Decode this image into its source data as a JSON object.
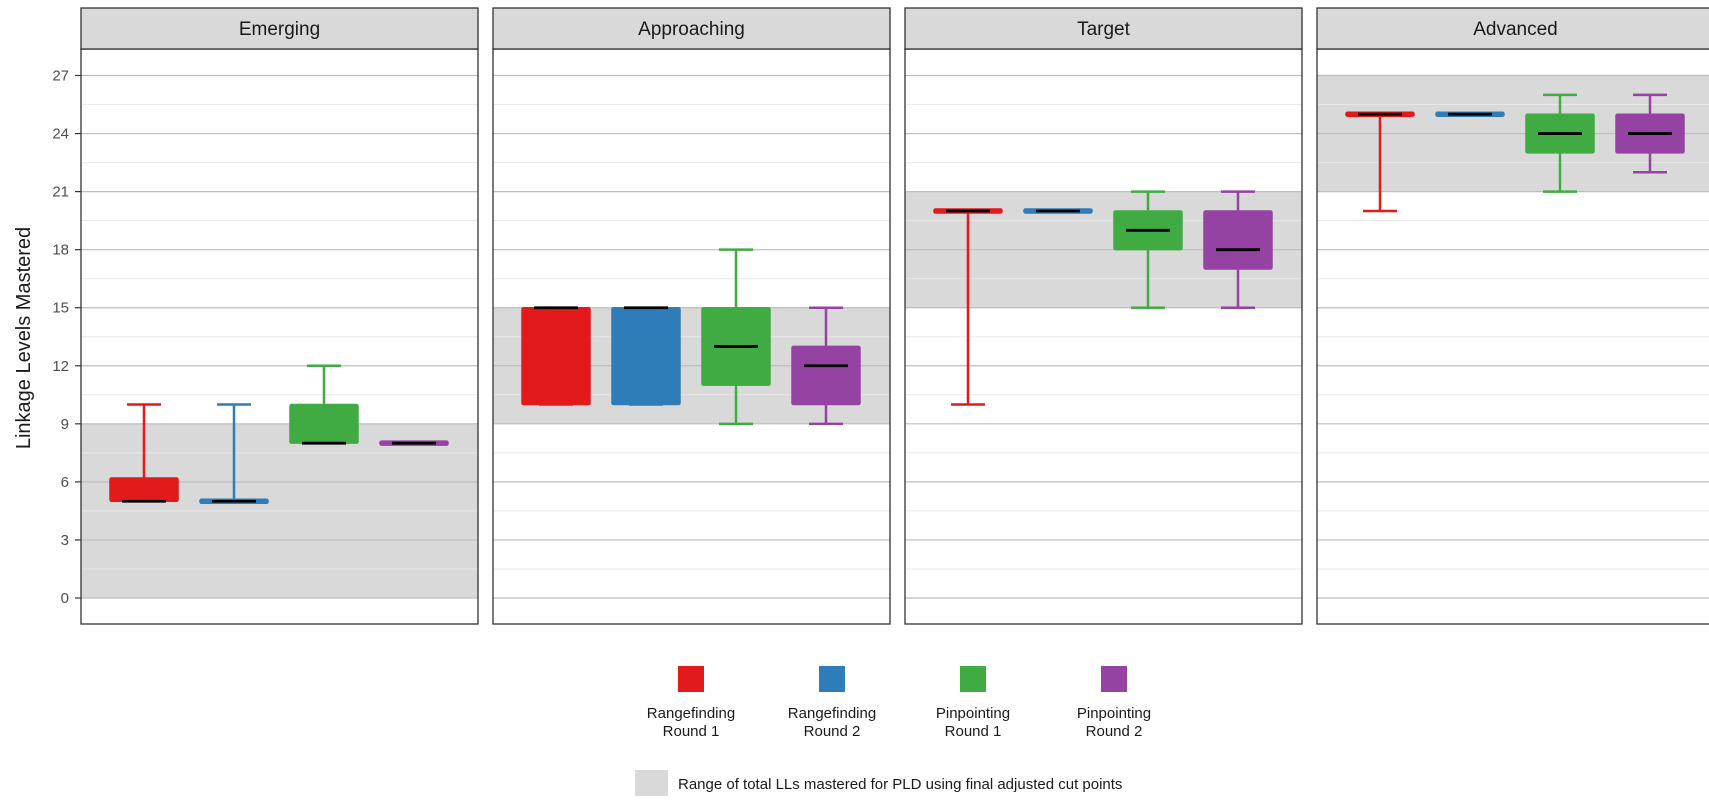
{
  "chart_data": {
    "type": "box",
    "ylabel": "Linkage Levels Mastered",
    "xlabel": "",
    "title": "",
    "ylim": [
      -1.3,
      30.5
    ],
    "y_ticks": [
      "0",
      "3",
      "6",
      "9",
      "12",
      "15",
      "18",
      "21",
      "24",
      "27"
    ],
    "y_tick_values": [
      0,
      3,
      6,
      9,
      12,
      15,
      18,
      21,
      24,
      27
    ],
    "grid": true,
    "legend_placement": "bottom",
    "series": [
      {
        "name": "Rangefinding\nRound 1",
        "color": "#E31A1C"
      },
      {
        "name": "Rangefinding\nRound 2",
        "color": "#2E7CB8"
      },
      {
        "name": "Pinpointing\nRound 1",
        "color": "#41AB43"
      },
      {
        "name": "Pinpointing\nRound 2",
        "color": "#9443A3"
      }
    ],
    "band_legend": {
      "label": "Range of total LLs mastered for PLD using final adjusted cut points",
      "color": "#D9D9D9"
    },
    "panels": [
      {
        "name": "Emerging",
        "band": [
          0,
          9
        ],
        "boxes": [
          {
            "series": 0,
            "min": 5,
            "q1": 5,
            "median": 5,
            "q3": 6.2,
            "max": 10
          },
          {
            "series": 1,
            "min": 5,
            "q1": 5,
            "median": 5,
            "q3": 5,
            "max": 10
          },
          {
            "series": 2,
            "min": 8,
            "q1": 8,
            "median": 8,
            "q3": 10,
            "max": 12
          },
          {
            "series": 3,
            "min": 8,
            "q1": 8,
            "median": 8,
            "q3": 8,
            "max": 8
          }
        ]
      },
      {
        "name": "Approaching",
        "band": [
          9,
          15
        ],
        "boxes": [
          {
            "series": 0,
            "min": 10,
            "q1": 10,
            "median": 15,
            "q3": 15,
            "max": 15
          },
          {
            "series": 1,
            "min": 10,
            "q1": 10,
            "median": 15,
            "q3": 15,
            "max": 15
          },
          {
            "series": 2,
            "min": 9,
            "q1": 11,
            "median": 13,
            "q3": 15,
            "max": 18
          },
          {
            "series": 3,
            "min": 9,
            "q1": 10,
            "median": 12,
            "q3": 13,
            "max": 15
          }
        ]
      },
      {
        "name": "Target",
        "band": [
          15,
          21
        ],
        "boxes": [
          {
            "series": 0,
            "min": 10,
            "q1": 20,
            "median": 20,
            "q3": 20,
            "max": 20
          },
          {
            "series": 1,
            "min": 20,
            "q1": 20,
            "median": 20,
            "q3": 20,
            "max": 20
          },
          {
            "series": 2,
            "min": 15,
            "q1": 18,
            "median": 19,
            "q3": 20,
            "max": 21
          },
          {
            "series": 3,
            "min": 15,
            "q1": 17,
            "median": 18,
            "q3": 20,
            "max": 21
          }
        ]
      },
      {
        "name": "Advanced",
        "band": [
          21,
          27
        ],
        "boxes": [
          {
            "series": 0,
            "min": 20,
            "q1": 25,
            "median": 25,
            "q3": 25,
            "max": 25
          },
          {
            "series": 1,
            "min": 25,
            "q1": 25,
            "median": 25,
            "q3": 25,
            "max": 25
          },
          {
            "series": 2,
            "min": 21,
            "q1": 23,
            "median": 24,
            "q3": 25,
            "max": 26
          },
          {
            "series": 3,
            "min": 22,
            "q1": 23,
            "median": 24,
            "q3": 25,
            "max": 26
          }
        ]
      }
    ]
  }
}
